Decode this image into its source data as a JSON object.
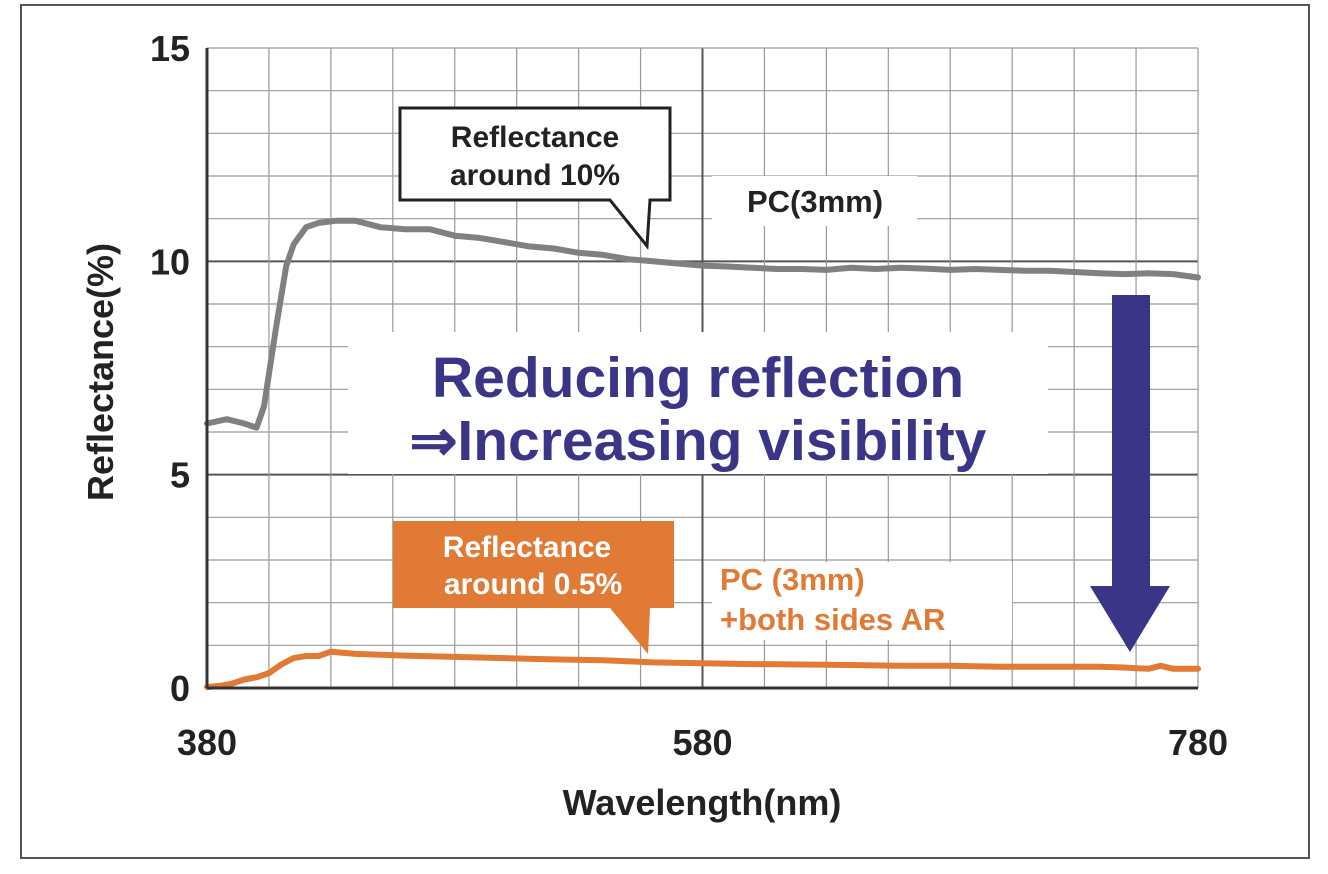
{
  "chart_data": {
    "type": "line",
    "xlabel": "Wavelength(nm)",
    "ylabel": "Reflectance(%)",
    "xlim": [
      380,
      780
    ],
    "ylim": [
      0,
      15
    ],
    "x_ticks": [
      "380",
      "580",
      "780"
    ],
    "y_ticks": [
      "0",
      "5",
      "10",
      "15"
    ],
    "grid": true,
    "series": [
      {
        "name": "PC(3mm)",
        "color": "#808080",
        "x": [
          380,
          388,
          395,
          400,
          403,
          408,
          412,
          415,
          420,
          425,
          432,
          440,
          450,
          460,
          470,
          480,
          490,
          500,
          510,
          520,
          530,
          540,
          550,
          560,
          570,
          580,
          590,
          600,
          610,
          620,
          630,
          640,
          650,
          660,
          670,
          680,
          690,
          700,
          710,
          720,
          730,
          740,
          750,
          760,
          770,
          780
        ],
        "y": [
          6.2,
          6.3,
          6.2,
          6.1,
          6.6,
          8.5,
          9.9,
          10.4,
          10.8,
          10.9,
          10.95,
          10.95,
          10.8,
          10.75,
          10.75,
          10.6,
          10.55,
          10.45,
          10.35,
          10.3,
          10.2,
          10.15,
          10.05,
          10.0,
          9.95,
          9.9,
          9.88,
          9.85,
          9.82,
          9.82,
          9.8,
          9.85,
          9.82,
          9.85,
          9.83,
          9.8,
          9.82,
          9.8,
          9.78,
          9.78,
          9.75,
          9.72,
          9.7,
          9.72,
          9.7,
          9.62
        ]
      },
      {
        "name": "PC (3mm) +both sides AR",
        "color": "#e07a34",
        "x": [
          380,
          385,
          390,
          395,
          400,
          405,
          410,
          415,
          420,
          425,
          430,
          440,
          450,
          460,
          480,
          500,
          520,
          540,
          560,
          580,
          600,
          620,
          640,
          660,
          680,
          700,
          720,
          740,
          750,
          760,
          765,
          770,
          780
        ],
        "y": [
          0.02,
          0.05,
          0.1,
          0.2,
          0.25,
          0.35,
          0.55,
          0.7,
          0.75,
          0.75,
          0.85,
          0.8,
          0.78,
          0.76,
          0.73,
          0.7,
          0.67,
          0.65,
          0.6,
          0.58,
          0.56,
          0.55,
          0.54,
          0.52,
          0.52,
          0.5,
          0.5,
          0.5,
          0.48,
          0.45,
          0.52,
          0.45,
          0.45
        ]
      }
    ],
    "annotations": {
      "callout_pc": [
        "Reflectance",
        "around 10%"
      ],
      "callout_ar": [
        "Reflectance",
        "around 0.5%"
      ],
      "label_pc": "PC(3mm)",
      "label_ar": [
        "PC (3mm)",
        "+both sides AR"
      ],
      "headline": [
        "Reducing reflection",
        "⇒Increasing visibility"
      ]
    },
    "colors": {
      "pc_line": "#808080",
      "ar_line": "#e07a34",
      "headline": "#3b3587",
      "arrow": "#3b3587",
      "grid_major": "#555555",
      "grid_minor": "#999999"
    }
  }
}
